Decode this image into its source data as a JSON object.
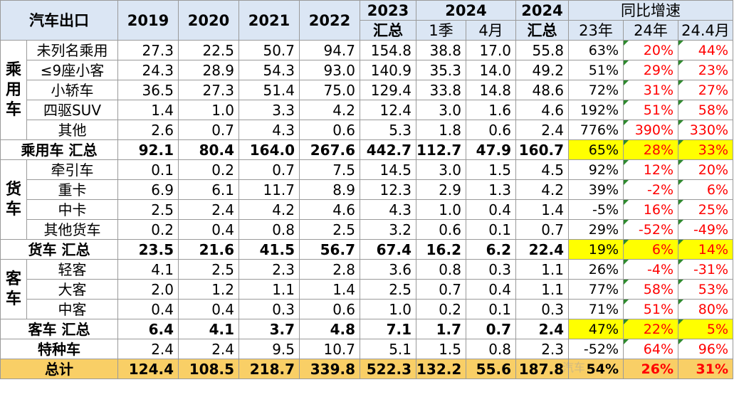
{
  "header": {
    "corner": "汽车出口",
    "y2019": "2019",
    "y2020": "2020",
    "y2021": "2021",
    "y2022": "2022",
    "y2023": "2023",
    "y2023_sub": "汇总",
    "y2024": "2024",
    "q1": "1季",
    "apr": "4月",
    "y2024b": "2024",
    "y2024b_sub": "汇总",
    "yoy": "同比增速",
    "yoy23": "23年",
    "yoy24": "24年",
    "yoy244": "24.4月"
  },
  "groups": {
    "passenger": "乘用车",
    "truck": "货车",
    "bus": "客车"
  },
  "rows": {
    "pc1": [
      "未列名乘用",
      "27.3",
      "22.5",
      "50.7",
      "94.7",
      "154.8",
      "38.8",
      "17.0",
      "55.8",
      "63%",
      "20%",
      "44%"
    ],
    "pc2": [
      "≤9座小客",
      "24.3",
      "28.9",
      "54.3",
      "93.0",
      "140.9",
      "35.3",
      "14.0",
      "49.2",
      "51%",
      "29%",
      "23%"
    ],
    "pc3": [
      "小轿车",
      "36.5",
      "27.3",
      "51.4",
      "75.0",
      "129.4",
      "33.8",
      "14.8",
      "48.6",
      "72%",
      "31%",
      "27%"
    ],
    "pc4": [
      "四驱SUV",
      "1.4",
      "1.0",
      "3.3",
      "4.2",
      "12.4",
      "3.0",
      "1.6",
      "4.6",
      "192%",
      "51%",
      "58%"
    ],
    "pc5": [
      "其他",
      "2.6",
      "0.7",
      "4.3",
      "0.6",
      "5.3",
      "1.8",
      "0.6",
      "2.4",
      "776%",
      "390%",
      "330%"
    ],
    "pcsum": [
      "乘用车 汇总",
      "92.1",
      "80.4",
      "164.0",
      "267.6",
      "442.7",
      "112.7",
      "47.9",
      "160.7",
      "65%",
      "28%",
      "33%"
    ],
    "tr1": [
      "牵引车",
      "0.1",
      "0.2",
      "0.7",
      "7.5",
      "14.5",
      "3.0",
      "1.5",
      "4.5",
      "92%",
      "12%",
      "20%"
    ],
    "tr2": [
      "重卡",
      "6.9",
      "6.1",
      "11.7",
      "8.9",
      "12.3",
      "2.9",
      "1.3",
      "4.2",
      "39%",
      "-2%",
      "6%"
    ],
    "tr3": [
      "中卡",
      "2.5",
      "2.4",
      "4.2",
      "4.6",
      "4.3",
      "1.0",
      "0.4",
      "1.4",
      "-5%",
      "16%",
      "25%"
    ],
    "tr4": [
      "其他货车",
      "0.2",
      "0.4",
      "0.8",
      "2.5",
      "3.2",
      "0.6",
      "0.1",
      "0.7",
      "29%",
      "-52%",
      "-49%"
    ],
    "trsum": [
      "货车 汇总",
      "23.5",
      "21.6",
      "41.5",
      "56.7",
      "67.4",
      "16.2",
      "6.2",
      "22.4",
      "19%",
      "6%",
      "14%"
    ],
    "bu1": [
      "轻客",
      "4.1",
      "2.5",
      "2.3",
      "2.8",
      "3.6",
      "0.8",
      "0.3",
      "1.1",
      "26%",
      "-4%",
      "-31%"
    ],
    "bu2": [
      "大客",
      "2.0",
      "1.2",
      "1.1",
      "1.4",
      "2.5",
      "0.7",
      "0.4",
      "1.1",
      "77%",
      "58%",
      "53%"
    ],
    "bu3": [
      "中客",
      "0.4",
      "0.4",
      "0.3",
      "0.6",
      "1.0",
      "0.2",
      "0.1",
      "0.3",
      "71%",
      "51%",
      "80%"
    ],
    "busum": [
      "客车 汇总",
      "6.4",
      "4.1",
      "3.7",
      "4.8",
      "7.1",
      "1.7",
      "0.7",
      "2.4",
      "47%",
      "22%",
      "5%"
    ],
    "special": [
      "特种车",
      "2.4",
      "2.4",
      "9.5",
      "10.7",
      "5.1",
      "1.5",
      "0.8",
      "2.3",
      "-52%",
      "64%",
      "96%"
    ],
    "total": [
      "总计",
      "124.4",
      "108.5",
      "218.7",
      "339.8",
      "522.3",
      "132.2",
      "55.6",
      "187.8",
      "54%",
      "26%",
      "31%"
    ]
  },
  "watermark": "汽车",
  "colors": {
    "header_bg": "#dbe6f4",
    "highlight": "#ffff00",
    "total_bg": "#f9cf66",
    "negative_text": "#ff0000",
    "corner_mark": "#2e8b2e"
  }
}
